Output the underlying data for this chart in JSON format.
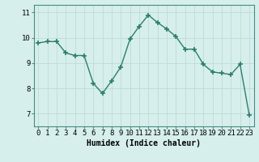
{
  "x": [
    0,
    1,
    2,
    3,
    4,
    5,
    6,
    7,
    8,
    9,
    10,
    11,
    12,
    13,
    14,
    15,
    16,
    17,
    18,
    19,
    20,
    21,
    22,
    23
  ],
  "y": [
    9.8,
    9.85,
    9.85,
    9.4,
    9.3,
    9.3,
    8.2,
    7.8,
    8.3,
    8.85,
    9.95,
    10.45,
    10.9,
    10.6,
    10.35,
    10.05,
    9.55,
    9.55,
    8.95,
    8.65,
    8.6,
    8.55,
    8.95,
    6.95
  ],
  "line_color": "#2E7D6E",
  "marker": "+",
  "marker_size": 4,
  "bg_color": "#D6EFEC",
  "grid_color": "#C2DDD9",
  "xlabel": "Humidex (Indice chaleur)",
  "xlim": [
    -0.5,
    23.5
  ],
  "ylim": [
    6.5,
    11.3
  ],
  "yticks": [
    7,
    8,
    9,
    10,
    11
  ],
  "xticks": [
    0,
    1,
    2,
    3,
    4,
    5,
    6,
    7,
    8,
    9,
    10,
    11,
    12,
    13,
    14,
    15,
    16,
    17,
    18,
    19,
    20,
    21,
    22,
    23
  ],
  "label_fontsize": 7,
  "tick_fontsize": 6.5,
  "spine_color": "#4A8A80",
  "line_width": 1.0,
  "marker_color": "#2E7D6E"
}
